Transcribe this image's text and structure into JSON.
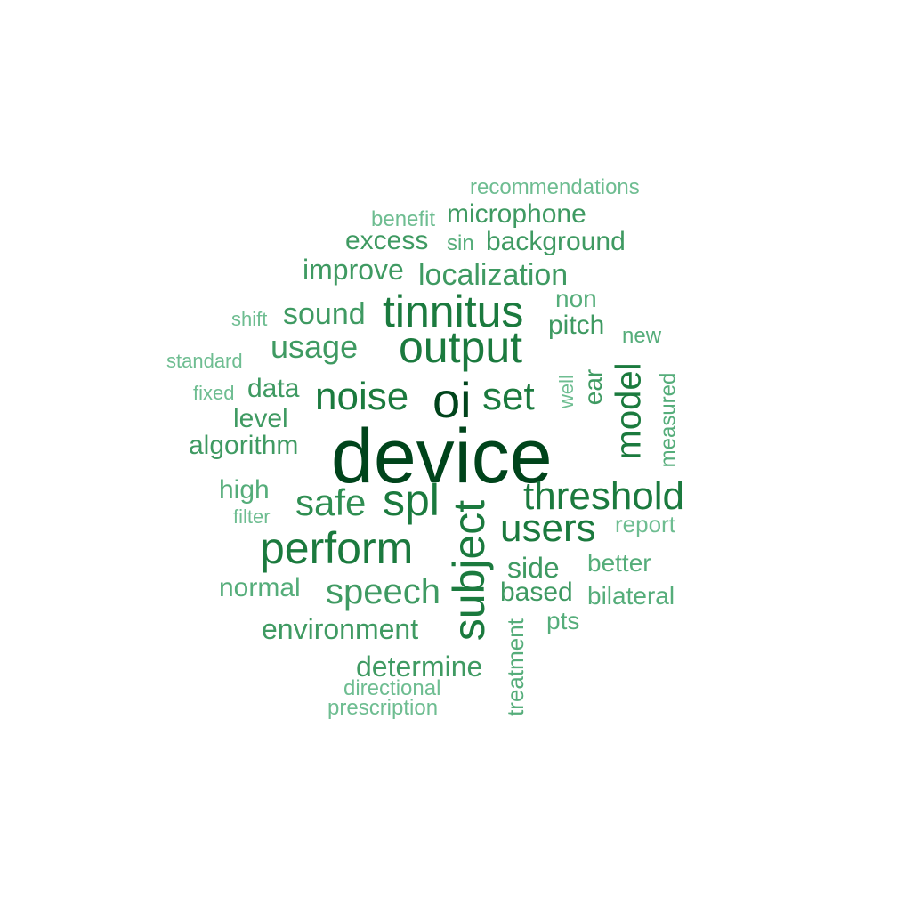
{
  "words": {
    "device": "device",
    "oi": "oi",
    "output": "output",
    "tinnitus": "tinnitus",
    "spl": "spl",
    "subject": "subject",
    "threshold": "threshold",
    "perform": "perform",
    "noise": "noise",
    "set": "set",
    "users": "users",
    "model": "model",
    "safe": "safe",
    "speech": "speech",
    "usage": "usage",
    "sound": "sound",
    "localization": "localization",
    "algorithm": "algorithm",
    "determine": "determine",
    "environment": "environment",
    "microphone": "microphone",
    "background": "background",
    "improve": "improve",
    "excess": "excess",
    "pitch": "pitch",
    "side": "side",
    "based": "based",
    "level": "level",
    "data": "data",
    "high": "high",
    "normal": "normal",
    "better": "better",
    "bilateral": "bilateral",
    "pts": "pts",
    "ear": "ear",
    "non": "non",
    "new": "new",
    "report": "report",
    "treatment": "treatment",
    "measured": "measured",
    "well": "well",
    "recommendations": "recommendations",
    "benefit": "benefit",
    "sin": "sin",
    "shift": "shift",
    "standard": "standard",
    "fixed": "fixed",
    "filter": "filter",
    "directional": "directional",
    "prescription": "prescription"
  },
  "colors": {
    "darkest": "#00441b",
    "dark": "#1b7a3e",
    "medium": "#2f8e52",
    "mid_light": "#3f9a62",
    "light": "#55ad7a",
    "lightest": "#6ebd91"
  }
}
